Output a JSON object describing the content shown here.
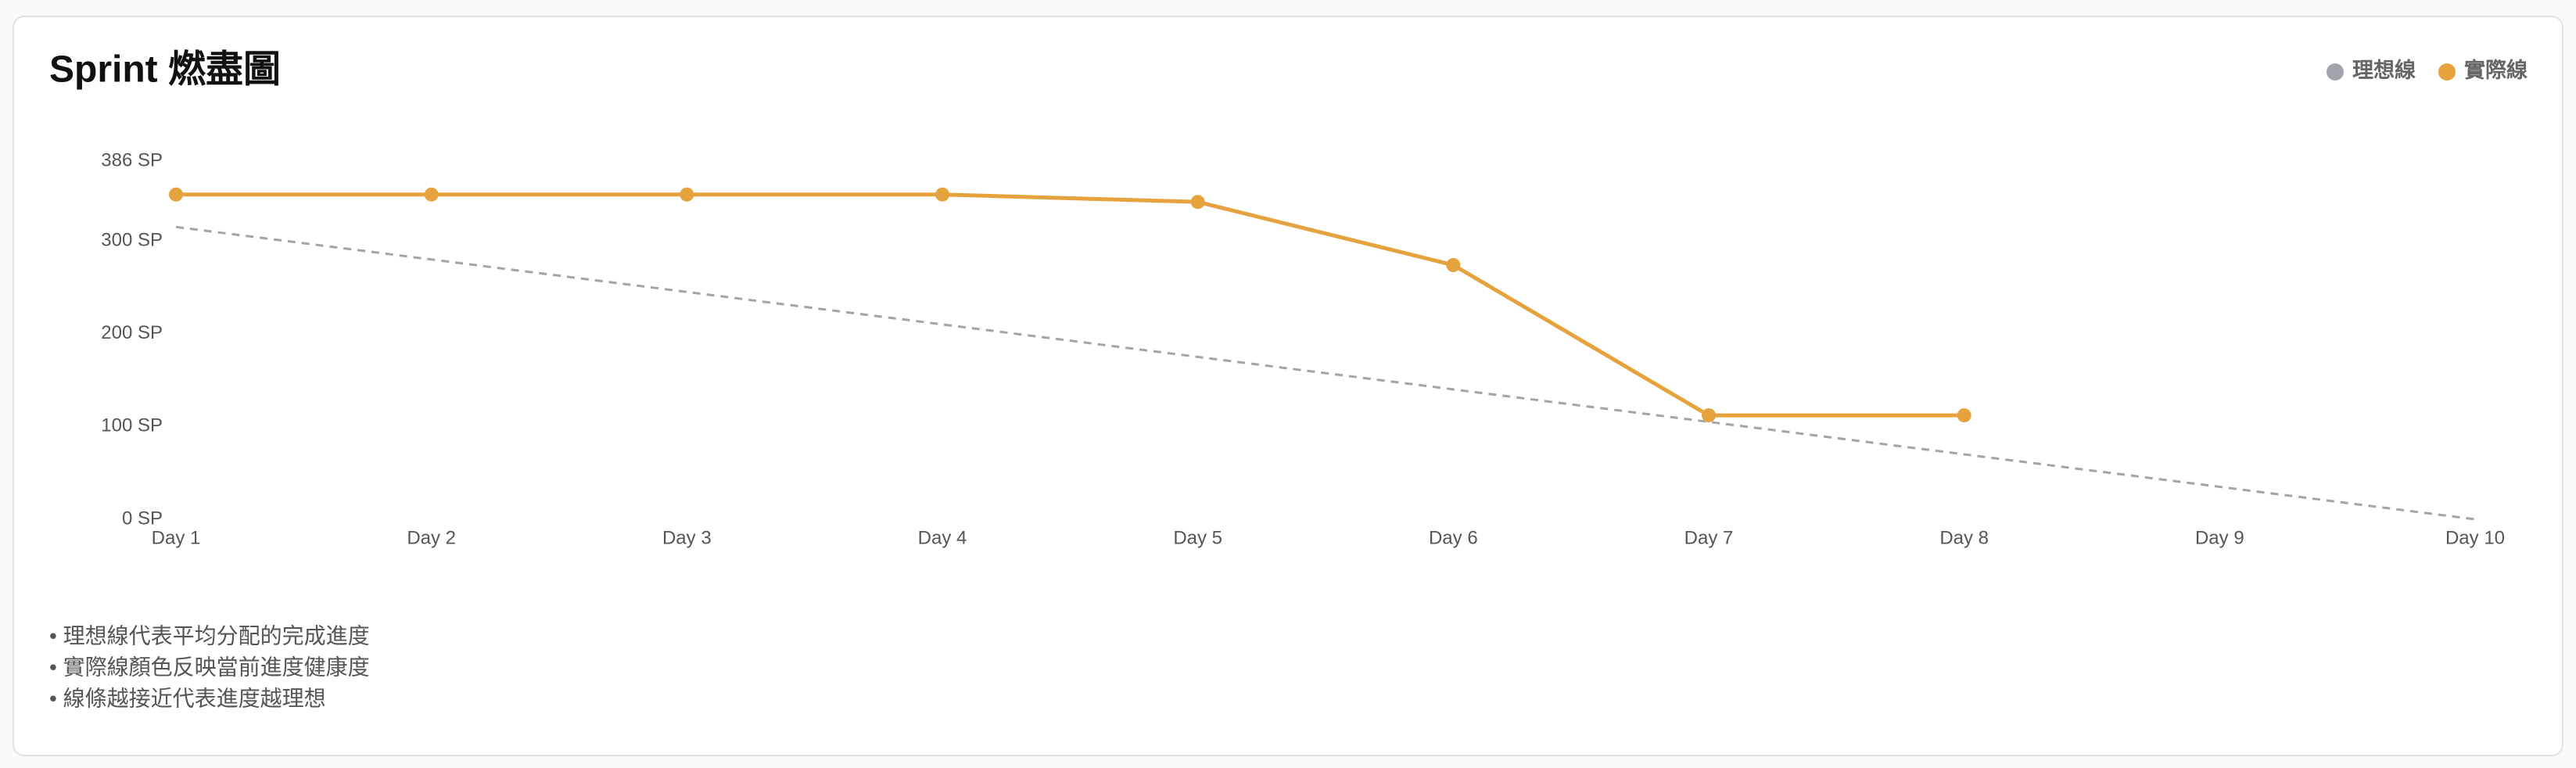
{
  "chart_data": {
    "type": "line",
    "title": "Sprint 燃盡圖",
    "categories": [
      "Day 1",
      "Day 2",
      "Day 3",
      "Day 4",
      "Day 5",
      "Day 6",
      "Day 7",
      "Day 8",
      "Day 9",
      "Day 10"
    ],
    "series": [
      {
        "name": "理想線",
        "color": "#a0a4ab",
        "line_style": "dashed",
        "markers": false,
        "values": [
          315,
          280,
          245,
          210,
          175,
          140,
          105,
          70,
          35,
          0
        ]
      },
      {
        "name": "實際線",
        "color": "#e6a23c",
        "line_style": "solid",
        "markers": true,
        "values": [
          350,
          350,
          350,
          350,
          342,
          274,
          112,
          112,
          null,
          null
        ]
      }
    ],
    "ylim": [
      0,
      386
    ],
    "yticks": [
      {
        "value": 0,
        "label": "0 SP"
      },
      {
        "value": 100,
        "label": "100 SP"
      },
      {
        "value": 200,
        "label": "200 SP"
      },
      {
        "value": 300,
        "label": "300 SP"
      },
      {
        "value": 386,
        "label": "386 SP"
      }
    ],
    "grid": false,
    "legend": "top-right"
  },
  "notes": [
    "• 理想線代表平均分配的完成進度",
    "• 實際線顏色反映當前進度健康度",
    "• 線條越接近代表進度越理想"
  ]
}
